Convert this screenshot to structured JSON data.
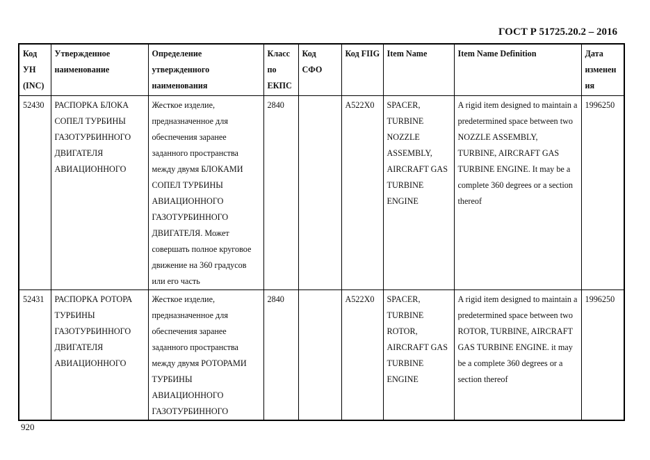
{
  "header": "ГОСТ Р 51725.20.2 – 2016",
  "columns": [
    "Код УН (INC)",
    "Утвержденное наименование",
    "Определение утвержденного наименования",
    "Класс по ЕКПС",
    "Код СФО",
    "Код FIIG",
    "Item Name",
    "Item Name Definition",
    "Дата изменения"
  ],
  "rows": [
    [
      "52430",
      "РАСПОРКА БЛОКА СОПЕЛ ТУРБИНЫ ГАЗОТУРБИННОГО ДВИГАТЕЛЯ АВИАЦИОННОГО",
      "Жесткое изделие, предназначенное для обеспечения заранее заданного пространства между двумя БЛОКАМИ СОПЕЛ ТУРБИНЫ АВИАЦИОННОГО ГАЗОТУРБИННОГО ДВИГАТЕЛЯ. Может совершать полное круговое движение на 360 градусов или его часть",
      "2840",
      "",
      "A522X0",
      "SPACER, TURBINE NOZZLE ASSEMBLY, AIRCRAFT GAS TURBINE ENGINE",
      "A rigid item designed to maintain a predetermined space between two NOZZLE ASSEMBLY, TURBINE, AIRCRAFT GAS TURBINE ENGINE. It may be a complete 360 degrees or a section thereof",
      "1996250"
    ],
    [
      "52431",
      "РАСПОРКА РОТОРА ТУРБИНЫ ГАЗОТУРБИННОГО ДВИГАТЕЛЯ АВИАЦИОННОГО",
      "Жесткое изделие, предназначенное для обеспечения заранее заданного пространства между двумя РОТОРАМИ ТУРБИНЫ АВИАЦИОННОГО ГАЗОТУРБИННОГО",
      "2840",
      "",
      "A522X0",
      "SPACER, TURBINE ROTOR, AIRCRAFT GAS TURBINE ENGINE",
      "A rigid item designed to maintain a predetermined space between two ROTOR, TURBINE, AIRCRAFT GAS TURBINE ENGINE. it may be a complete 360 degrees or a section thereof",
      "1996250"
    ]
  ],
  "page_number": "920"
}
